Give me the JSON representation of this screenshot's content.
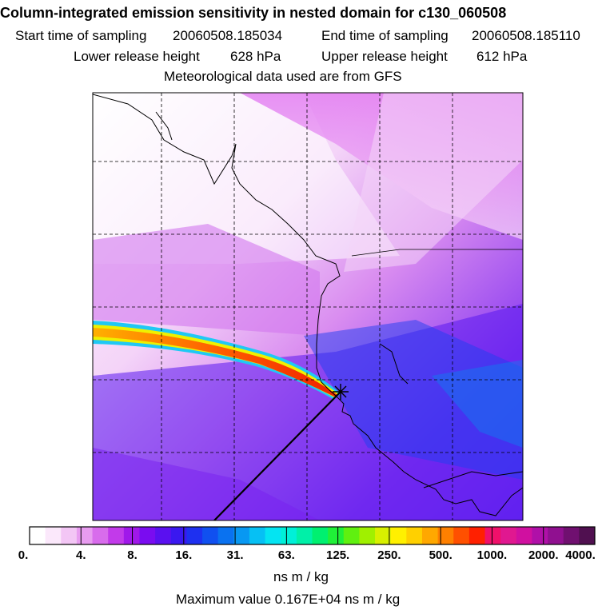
{
  "title": "Column-integrated emission sensitivity in nested domain for c130_060508",
  "sampling": {
    "start_label": "Start time of sampling",
    "start_value": "20060508.185034",
    "end_label": "End time of sampling",
    "end_value": "20060508.185110"
  },
  "release": {
    "lower_label": "Lower release height",
    "lower_value": "628 hPa",
    "upper_label": "Upper release height",
    "upper_value": "612 hPa"
  },
  "met_note": "Meteorological data used are from GFS",
  "colorbar": {
    "tick_labels": [
      "0.",
      "4.",
      "8.",
      "16.",
      "31.",
      "63.",
      "125.",
      "250.",
      "500.",
      "1000.",
      "2000.",
      "4000."
    ],
    "colors": [
      "#ffffff",
      "#fbe8fb",
      "#f3c6f5",
      "#e89cf0",
      "#d86cec",
      "#c23aea",
      "#a018ea",
      "#7a0cf0",
      "#5a10f0",
      "#3a18f0",
      "#1e30f0",
      "#1050f0",
      "#0a72f0",
      "#0898f2",
      "#06c0f4",
      "#04e4f2",
      "#00f0d8",
      "#00f0a8",
      "#00f070",
      "#20f038",
      "#60f010",
      "#a0f000",
      "#d8f000",
      "#fff000",
      "#ffd000",
      "#ffa800",
      "#ff8000",
      "#ff5000",
      "#ff2000",
      "#f0106a",
      "#e01890",
      "#d010a0",
      "#b010a8",
      "#901090",
      "#701070",
      "#501050"
    ],
    "units": "ns m / kg"
  },
  "max_value_text": "Maximum value  0.167E+04 ns m / kg"
}
